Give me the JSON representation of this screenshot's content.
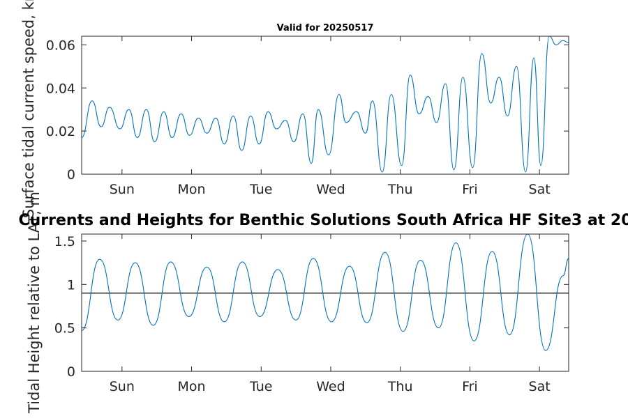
{
  "figure": {
    "suptitle": "Currents and Heights for Benthic Solutions South Africa HF Site3 at 20"
  },
  "chart_data": [
    {
      "type": "line",
      "title": "Valid for 20250517",
      "ylabel": "Surface tidal current speed, kn",
      "xlim": [
        0,
        7
      ],
      "ylim": [
        0,
        0.064
      ],
      "yticks": [
        0,
        0.02,
        0.04,
        0.06
      ],
      "yticklabels": [
        "0",
        "0.02",
        "0.04",
        "0.06"
      ],
      "xticks": [
        0.58,
        1.58,
        2.58,
        3.58,
        4.58,
        5.58,
        6.58
      ],
      "xticklabels": [
        "Sun",
        "Mon",
        "Tue",
        "Wed",
        "Thu",
        "Fri",
        "Sat"
      ],
      "grid": false,
      "series": [
        {
          "color": "#0072bd",
          "x": [
            0,
            0.15,
            0.28,
            0.4,
            0.55,
            0.68,
            0.8,
            0.93,
            1.05,
            1.18,
            1.3,
            1.43,
            1.55,
            1.68,
            1.8,
            1.93,
            2.05,
            2.18,
            2.3,
            2.43,
            2.55,
            2.68,
            2.8,
            2.93,
            3.05,
            3.18,
            3.3,
            3.4,
            3.55,
            3.7,
            3.8,
            3.95,
            4.08,
            4.18,
            4.32,
            4.45,
            4.6,
            4.72,
            4.85,
            4.98,
            5.1,
            5.23,
            5.35,
            5.48,
            5.62,
            5.75,
            5.88,
            6.0,
            6.12,
            6.25,
            6.38,
            6.5,
            6.6,
            6.72,
            6.82,
            6.92,
            7.0
          ],
          "y": [
            0.017,
            0.034,
            0.022,
            0.031,
            0.021,
            0.03,
            0.017,
            0.03,
            0.015,
            0.029,
            0.017,
            0.028,
            0.018,
            0.026,
            0.019,
            0.026,
            0.014,
            0.027,
            0.011,
            0.027,
            0.014,
            0.029,
            0.021,
            0.025,
            0.015,
            0.028,
            0.005,
            0.03,
            0.009,
            0.037,
            0.024,
            0.029,
            0.019,
            0.034,
            0.001,
            0.037,
            0.004,
            0.046,
            0.028,
            0.036,
            0.024,
            0.042,
            0.002,
            0.045,
            0.003,
            0.056,
            0.033,
            0.045,
            0.027,
            0.05,
            0.001,
            0.054,
            0.004,
            0.064,
            0.06,
            0.062,
            0.061
          ]
        }
      ]
    },
    {
      "type": "line",
      "ylabel": "Tidal Height relative to LAT, m",
      "xlim": [
        0,
        7
      ],
      "ylim": [
        0,
        1.58
      ],
      "yticks": [
        0,
        0.5,
        1,
        1.5
      ],
      "yticklabels": [
        "0",
        "0.5",
        "1",
        "1.5"
      ],
      "xticks": [
        0.58,
        1.58,
        2.58,
        3.58,
        4.58,
        5.58,
        6.58
      ],
      "xticklabels": [
        "Sun",
        "Mon",
        "Tue",
        "Wed",
        "Thu",
        "Fri",
        "Sat"
      ],
      "reference_line": 0.9,
      "grid": false,
      "series": [
        {
          "color": "#0072bd",
          "x": [
            0,
            0.26,
            0.52,
            0.77,
            1.03,
            1.28,
            1.54,
            1.8,
            2.05,
            2.31,
            2.56,
            2.82,
            3.08,
            3.33,
            3.59,
            3.85,
            4.1,
            4.36,
            4.62,
            4.87,
            5.13,
            5.38,
            5.64,
            5.9,
            6.15,
            6.41,
            6.67,
            6.92,
            7.0
          ],
          "y": [
            0.47,
            1.29,
            0.59,
            1.25,
            0.53,
            1.26,
            0.63,
            1.2,
            0.57,
            1.26,
            0.63,
            1.17,
            0.59,
            1.3,
            0.57,
            1.21,
            0.56,
            1.37,
            0.46,
            1.28,
            0.5,
            1.48,
            0.35,
            1.38,
            0.42,
            1.58,
            0.24,
            1.1,
            1.3
          ]
        }
      ]
    }
  ]
}
